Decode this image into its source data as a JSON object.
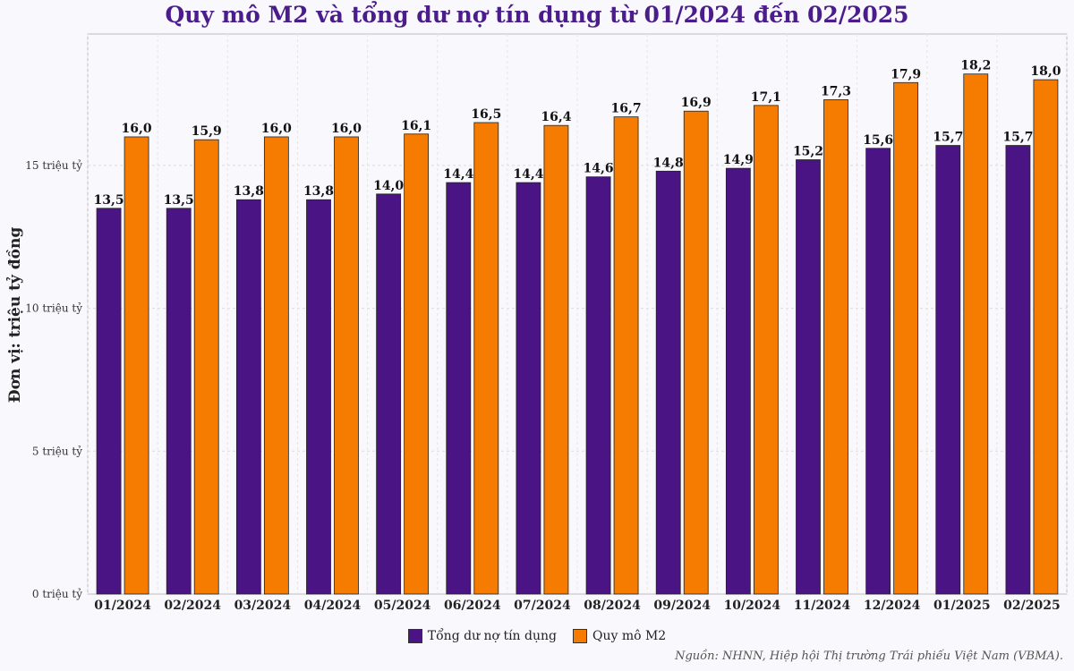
{
  "chart_data": {
    "type": "bar",
    "title": "Quy mô M2 và tổng dư nợ tín dụng từ 01/2024 đến 02/2025",
    "ylabel": "Đơn vị: triệu tỷ đồng",
    "xlabel": "",
    "ylim": [
      0,
      19.6
    ],
    "yticks": [
      {
        "value": 0,
        "label": "0 triệu tỷ"
      },
      {
        "value": 5,
        "label": "5 triệu tỷ"
      },
      {
        "value": 10,
        "label": "10 triệu tỷ"
      },
      {
        "value": 15,
        "label": "15 triệu tỷ"
      }
    ],
    "categories": [
      "01/2024",
      "02/2024",
      "03/2024",
      "04/2024",
      "05/2024",
      "06/2024",
      "07/2024",
      "08/2024",
      "09/2024",
      "10/2024",
      "11/2024",
      "12/2024",
      "01/2025",
      "02/2025"
    ],
    "series": [
      {
        "name": "Tổng dư nợ tín dụng",
        "color": "#4b1485",
        "values": [
          13.5,
          13.5,
          13.8,
          13.8,
          14.0,
          14.4,
          14.4,
          14.6,
          14.8,
          14.9,
          15.2,
          15.6,
          15.7,
          15.7
        ],
        "labels": [
          "13,5",
          "13,5",
          "13,8",
          "13,8",
          "14,0",
          "14,4",
          "14,4",
          "14,6",
          "14,8",
          "14,9",
          "15,2",
          "15,6",
          "15,7",
          "15,7"
        ]
      },
      {
        "name": "Quy mô M2",
        "color": "#f57c00",
        "values": [
          16.0,
          15.9,
          16.0,
          16.0,
          16.1,
          16.5,
          16.4,
          16.7,
          16.9,
          17.1,
          17.3,
          17.9,
          18.2,
          18.0
        ],
        "labels": [
          "16,0",
          "15,9",
          "16,0",
          "16,0",
          "16,1",
          "16,5",
          "16,4",
          "16,7",
          "16,9",
          "17,1",
          "17,3",
          "17,9",
          "18,2",
          "18,0"
        ]
      }
    ],
    "grid": true,
    "legend_position": "bottom-center"
  },
  "source_note": "Nguồn: NHNN, Hiệp hội Thị trường Trái phiếu Việt Nam (VBMA)."
}
